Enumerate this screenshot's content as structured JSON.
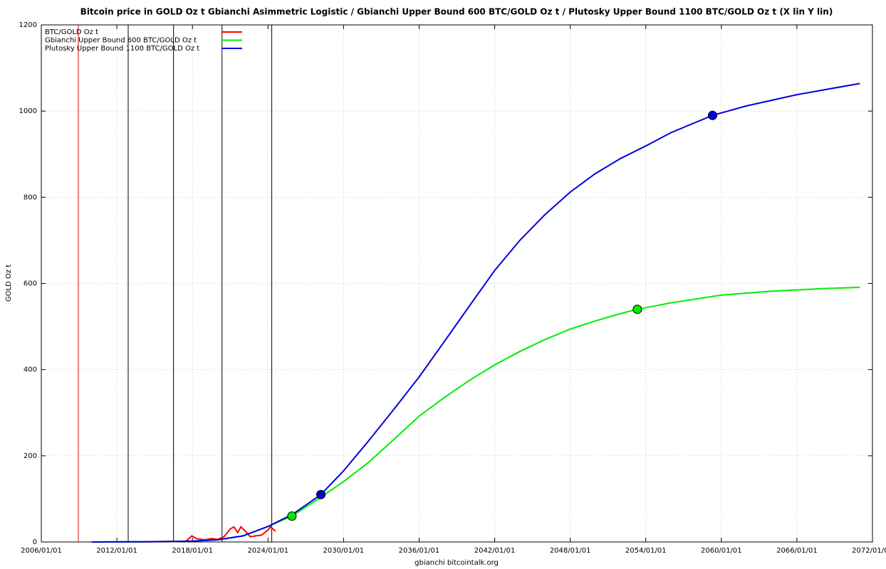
{
  "chart_data": {
    "type": "line",
    "title": "Bitcoin price in GOLD Oz t Gbianchi Asimmetric Logistic / Gbianchi Upper Bound 600  BTC/GOLD Oz t / Plutosky Upper Bound 1100  BTC/GOLD Oz t  (X lin Y lin)",
    "x_label": "gbianchi bitcointalk.org",
    "y_label": "GOLD Oz t",
    "xlim": [
      2006,
      2072
    ],
    "xticks": [
      {
        "value": 2006,
        "label": "2006/01/01"
      },
      {
        "value": 2012,
        "label": "2012/01/01"
      },
      {
        "value": 2018,
        "label": "2018/01/01"
      },
      {
        "value": 2024,
        "label": "2024/01/01"
      },
      {
        "value": 2030,
        "label": "2030/01/01"
      },
      {
        "value": 2036,
        "label": "2036/01/01"
      },
      {
        "value": 2042,
        "label": "2042/01/01"
      },
      {
        "value": 2048,
        "label": "2048/01/01"
      },
      {
        "value": 2054,
        "label": "2054/01/01"
      },
      {
        "value": 2060,
        "label": "2060/01/01"
      },
      {
        "value": 2066,
        "label": "2066/01/01"
      },
      {
        "value": 2072,
        "label": "2072/01/01"
      }
    ],
    "ylim": [
      0,
      1200
    ],
    "yticks": [
      0,
      200,
      400,
      600,
      800,
      1000,
      1200
    ],
    "grid": true,
    "legend": "top-left",
    "vertical_lines": [
      {
        "x": 2008.94,
        "color": "#e00000"
      },
      {
        "x": 2012.9,
        "color": "#000000"
      },
      {
        "x": 2016.5,
        "color": "#000000"
      },
      {
        "x": 2020.35,
        "color": "#000000"
      },
      {
        "x": 2024.3,
        "color": "#000000"
      }
    ],
    "series": [
      {
        "name": "BTC/GOLD Oz t",
        "color": "#ff0000",
        "x": [
          2010.5,
          2013,
          2016,
          2017.5,
          2017.95,
          2018.3,
          2019,
          2019.5,
          2020,
          2020.5,
          2021.0,
          2021.3,
          2021.6,
          2021.85,
          2022.3,
          2022.6,
          2023,
          2023.5,
          2024,
          2024.2,
          2024.6
        ],
        "values": [
          0,
          0.5,
          0.5,
          2,
          14,
          8,
          5,
          8,
          6,
          12,
          30,
          35,
          22,
          35,
          22,
          12,
          14,
          16,
          28,
          35,
          25
        ]
      },
      {
        "name": "Gbianchi Upper Bound 600  BTC/GOLD Oz t",
        "color": "#00ee00",
        "x": [
          2010,
          2014,
          2018,
          2020,
          2022,
          2024,
          2025.9,
          2028,
          2030,
          2032,
          2034,
          2036,
          2038,
          2040,
          2042,
          2044,
          2046,
          2048,
          2050,
          2052,
          2053.33,
          2056,
          2060,
          2064,
          2068,
          2071
        ],
        "values": [
          0,
          0.5,
          2,
          5,
          14,
          36,
          60,
          100,
          140,
          185,
          238,
          292,
          335,
          375,
          411,
          442,
          470,
          494,
          513,
          530,
          540,
          555,
          573,
          582,
          588,
          591
        ],
        "marker_x": [
          2025.9,
          2053.33
        ],
        "marker_values": [
          60,
          540
        ]
      },
      {
        "name": "Plutosky Upper Bound 1100  BTC/GOLD Oz t",
        "color": "#0000dd",
        "x": [
          2010,
          2014,
          2018,
          2020,
          2022,
          2024,
          2026,
          2028.2,
          2030,
          2032,
          2034,
          2036,
          2038,
          2040,
          2042,
          2044,
          2046,
          2048,
          2050,
          2052,
          2054,
          2056,
          2059.3,
          2062,
          2066,
          2071
        ],
        "values": [
          0,
          0.5,
          2,
          5,
          14,
          36,
          65,
          110,
          165,
          235,
          308,
          383,
          465,
          548,
          630,
          700,
          760,
          812,
          855,
          890,
          919,
          950,
          990,
          1012,
          1038,
          1064
        ],
        "marker_x": [
          2028.2,
          2059.3
        ],
        "marker_values": [
          110,
          990
        ]
      }
    ]
  }
}
